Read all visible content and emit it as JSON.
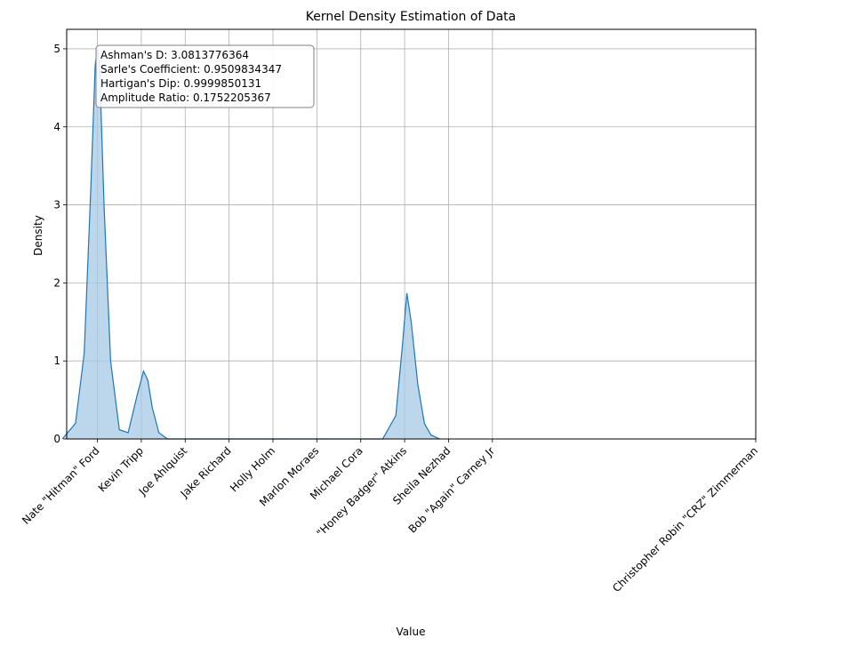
{
  "chart_data": {
    "type": "area",
    "title": "Kernel Density Estimation of Data",
    "xlabel": "Value",
    "ylabel": "Density",
    "ylim": [
      0,
      5.25
    ],
    "yticks": [
      0,
      1,
      2,
      3,
      4,
      5
    ],
    "grid": true,
    "x_tick_labels": [
      "Nate \"Hitman\" Ford",
      "Kevin Tripp",
      "Joe Ahlquist",
      "Jake Richard",
      "Holly Holm",
      "Marlon Moraes",
      "Michael Cora",
      "\"Honey Badger\" Atkins",
      "Sheila Nezhad",
      "Bob \"Again\" Carney Jr",
      "Christopher Robin \"CRZ\" Zimmerman"
    ],
    "x_tick_values": [
      0,
      1,
      2,
      3,
      4,
      5,
      6,
      7,
      8,
      9,
      15
    ],
    "series": [
      {
        "color": "#1f77b4",
        "fill": "#a6c8e4",
        "x": [
          -0.8,
          -0.5,
          -0.3,
          -0.15,
          -0.05,
          0.0,
          0.05,
          0.15,
          0.3,
          0.5,
          0.7,
          0.9,
          1.05,
          1.15,
          1.25,
          1.4,
          1.6,
          1.9,
          3,
          5,
          6.5,
          6.8,
          6.95,
          7.05,
          7.15,
          7.3,
          7.45,
          7.6,
          7.8
        ],
        "y": [
          0.0,
          0.2,
          1.1,
          3.2,
          4.8,
          5.0,
          4.8,
          3.0,
          1.0,
          0.12,
          0.08,
          0.55,
          0.87,
          0.75,
          0.4,
          0.08,
          0.0,
          0.0,
          0.0,
          0.0,
          0.0,
          0.3,
          1.2,
          1.87,
          1.5,
          0.7,
          0.2,
          0.05,
          0.0
        ]
      }
    ],
    "annotation": [
      "Ashman's D: 3.0813776364",
      "Sarle's Coefficient: 0.9509834347",
      "Hartigan's Dip: 0.9999850131",
      "Amplitude Ratio: 0.1752205367"
    ]
  }
}
